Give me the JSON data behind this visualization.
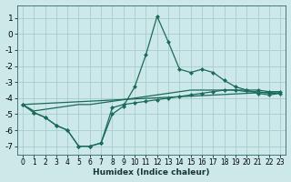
{
  "xlabel": "Humidex (Indice chaleur)",
  "xlim": [
    -0.5,
    23.5
  ],
  "ylim": [
    -7.5,
    1.8
  ],
  "yticks": [
    1,
    0,
    -1,
    -2,
    -3,
    -4,
    -5,
    -6,
    -7
  ],
  "xticks": [
    0,
    1,
    2,
    3,
    4,
    5,
    6,
    7,
    8,
    9,
    10,
    11,
    12,
    13,
    14,
    15,
    16,
    17,
    18,
    19,
    20,
    21,
    22,
    23
  ],
  "bg_color": "#cde8e8",
  "grid_color": "#aacccc",
  "line_color": "#1a6b5a",
  "main_x": [
    0,
    1,
    2,
    3,
    4,
    5,
    6,
    7,
    8,
    9,
    10,
    11,
    12,
    13,
    14,
    15,
    16,
    17,
    18,
    19,
    20,
    21,
    22,
    23
  ],
  "main_y": [
    -4.4,
    -4.9,
    -5.2,
    -5.7,
    -6.0,
    -7.0,
    -7.0,
    -6.8,
    -5.0,
    -4.5,
    -3.3,
    -1.3,
    1.1,
    -0.5,
    -2.2,
    -2.4,
    -2.2,
    -2.4,
    -2.9,
    -3.3,
    -3.5,
    -3.7,
    -3.8,
    -3.7
  ],
  "line2_x": [
    0,
    1,
    2,
    3,
    4,
    5,
    6,
    7,
    8,
    9,
    10,
    11,
    12,
    13,
    14,
    15,
    16,
    17,
    18,
    19,
    20,
    21,
    22,
    23
  ],
  "line2_y": [
    -4.4,
    -4.9,
    -5.2,
    -5.7,
    -6.0,
    -7.0,
    -7.0,
    -6.8,
    -4.6,
    -4.4,
    -4.3,
    -4.2,
    -4.1,
    -4.0,
    -3.9,
    -3.8,
    -3.7,
    -3.6,
    -3.5,
    -3.5,
    -3.5,
    -3.5,
    -3.6,
    -3.6
  ],
  "line3_x": [
    0,
    1,
    2,
    3,
    4,
    5,
    6,
    7,
    8,
    9,
    10,
    11,
    12,
    13,
    14,
    15,
    16,
    17,
    18,
    19,
    20,
    21,
    22,
    23
  ],
  "line3_y": [
    -4.4,
    -4.8,
    -4.7,
    -4.6,
    -4.5,
    -4.4,
    -4.4,
    -4.3,
    -4.2,
    -4.1,
    -4.0,
    -3.9,
    -3.8,
    -3.7,
    -3.6,
    -3.5,
    -3.5,
    -3.5,
    -3.5,
    -3.5,
    -3.6,
    -3.6,
    -3.7,
    -3.7
  ],
  "line4_x": [
    0,
    23
  ],
  "line4_y": [
    -4.4,
    -3.6
  ]
}
